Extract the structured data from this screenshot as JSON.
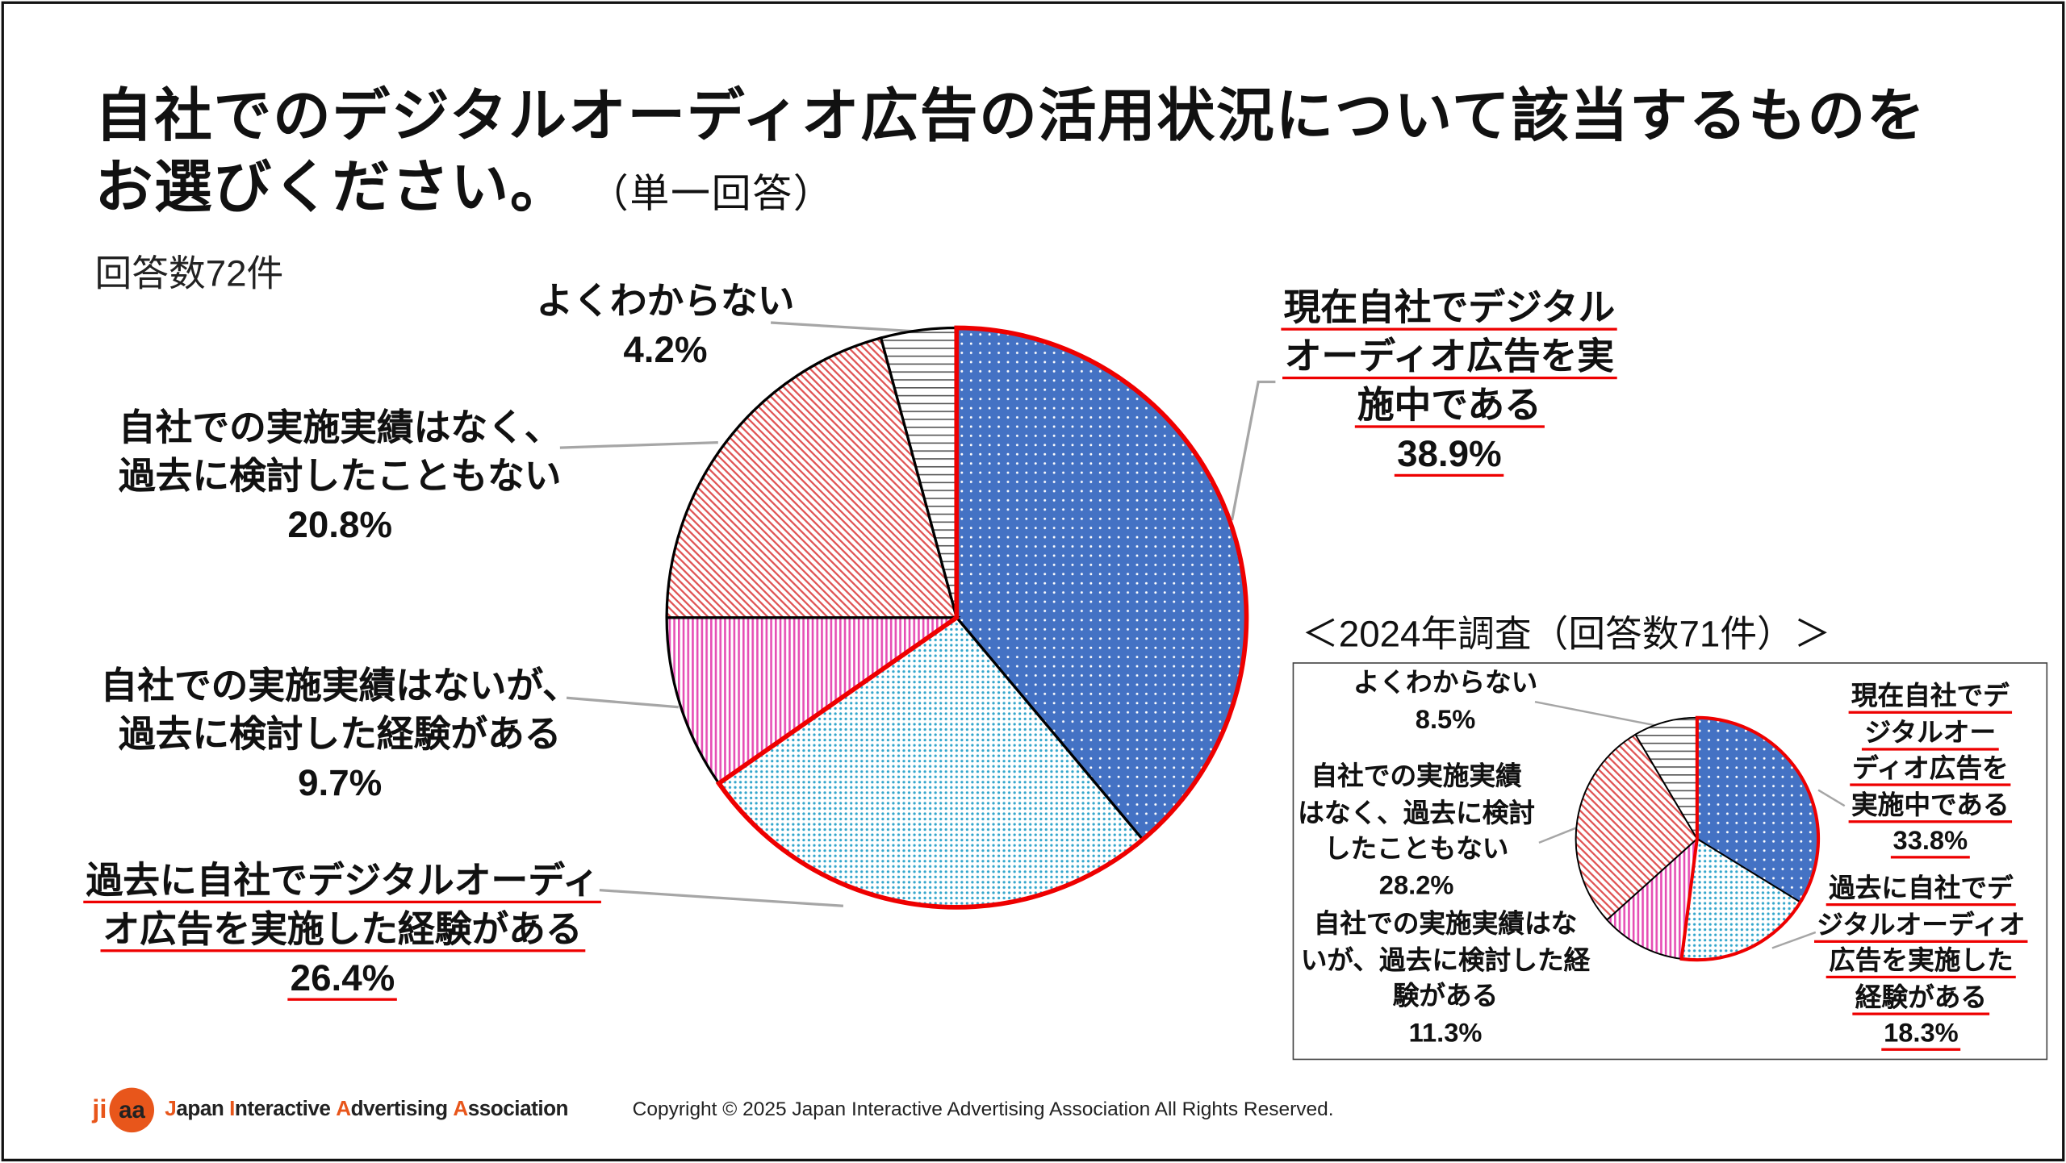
{
  "title": {
    "line1": "自社でのデジタルオーディオ広告の活用状況について該当するものを",
    "line2": "お選びください。",
    "note": "（単一回答）"
  },
  "response_count": "回答数72件",
  "colors": {
    "highlight": "#ee0000",
    "implementing": "#4472c4",
    "past": "#33a6cc",
    "considered": "#e64fb5",
    "never": "#e05555",
    "unknown": "#555555",
    "logo": "#e8561b"
  },
  "chart_data": [
    {
      "type": "pie",
      "title": "",
      "start": "12 o'clock, clockwise",
      "highlighted": [
        "現在自社でデジタルオーディオ広告を実施中である",
        "過去に自社でデジタルオーディオ広告を実施した経験がある"
      ],
      "slices": [
        {
          "label": [
            "現在自社でデジタル",
            "オーディオ広告を実",
            "施中である"
          ],
          "value": 38.9,
          "value_label": "38.9%",
          "pattern": "blue-dots"
        },
        {
          "label": [
            "過去に自社でデジタルオーディ",
            "オ広告を実施した経験がある"
          ],
          "value": 26.4,
          "value_label": "26.4%",
          "pattern": "cyan-fine-dots"
        },
        {
          "label": [
            "自社での実施実績はないが、",
            "過去に検討した経験がある"
          ],
          "value": 9.7,
          "value_label": "9.7%",
          "pattern": "pink-vertical-stripes"
        },
        {
          "label": [
            "自社での実施実績はなく、",
            "過去に検討したこともない"
          ],
          "value": 20.8,
          "value_label": "20.8%",
          "pattern": "red-diagonal-hatch"
        },
        {
          "label": [
            "よくわからない"
          ],
          "value": 4.2,
          "value_label": "4.2%",
          "pattern": "gray-horizontal-lines"
        }
      ]
    },
    {
      "type": "pie",
      "title": "＜2024年調査（回答数71件）＞",
      "start": "12 o'clock, clockwise",
      "slices": [
        {
          "label": [
            "現在自社でデ",
            "ジタルオー",
            "ディオ広告を",
            "実施中である"
          ],
          "value": 33.8,
          "value_label": "33.8%",
          "pattern": "blue-dots"
        },
        {
          "label": [
            "過去に自社でデ",
            "ジタルオーディオ",
            "広告を実施した",
            "経験がある"
          ],
          "value": 18.3,
          "value_label": "18.3%",
          "pattern": "cyan-fine-dots"
        },
        {
          "label": [
            "自社での実施実績はな",
            "いが、過去に検討した経",
            "験がある"
          ],
          "value": 11.3,
          "value_label": "11.3%",
          "pattern": "pink-vertical-stripes"
        },
        {
          "label": [
            "自社での実施実績",
            "はなく、過去に検討",
            "したこともない"
          ],
          "value": 28.2,
          "value_label": "28.2%",
          "pattern": "red-diagonal-hatch"
        },
        {
          "label": [
            "よくわからない"
          ],
          "value": 8.5,
          "value_label": "8.5%",
          "pattern": "gray-horizontal-lines"
        }
      ]
    }
  ],
  "footer": {
    "logo_text": "jiaa",
    "org_name_parts": [
      "J",
      "apan ",
      "I",
      "nteractive ",
      "A",
      "dvertising ",
      "A",
      "ssociation"
    ],
    "copyright": "Copyright © 2025 Japan Interactive Advertising Association All Rights Reserved."
  }
}
